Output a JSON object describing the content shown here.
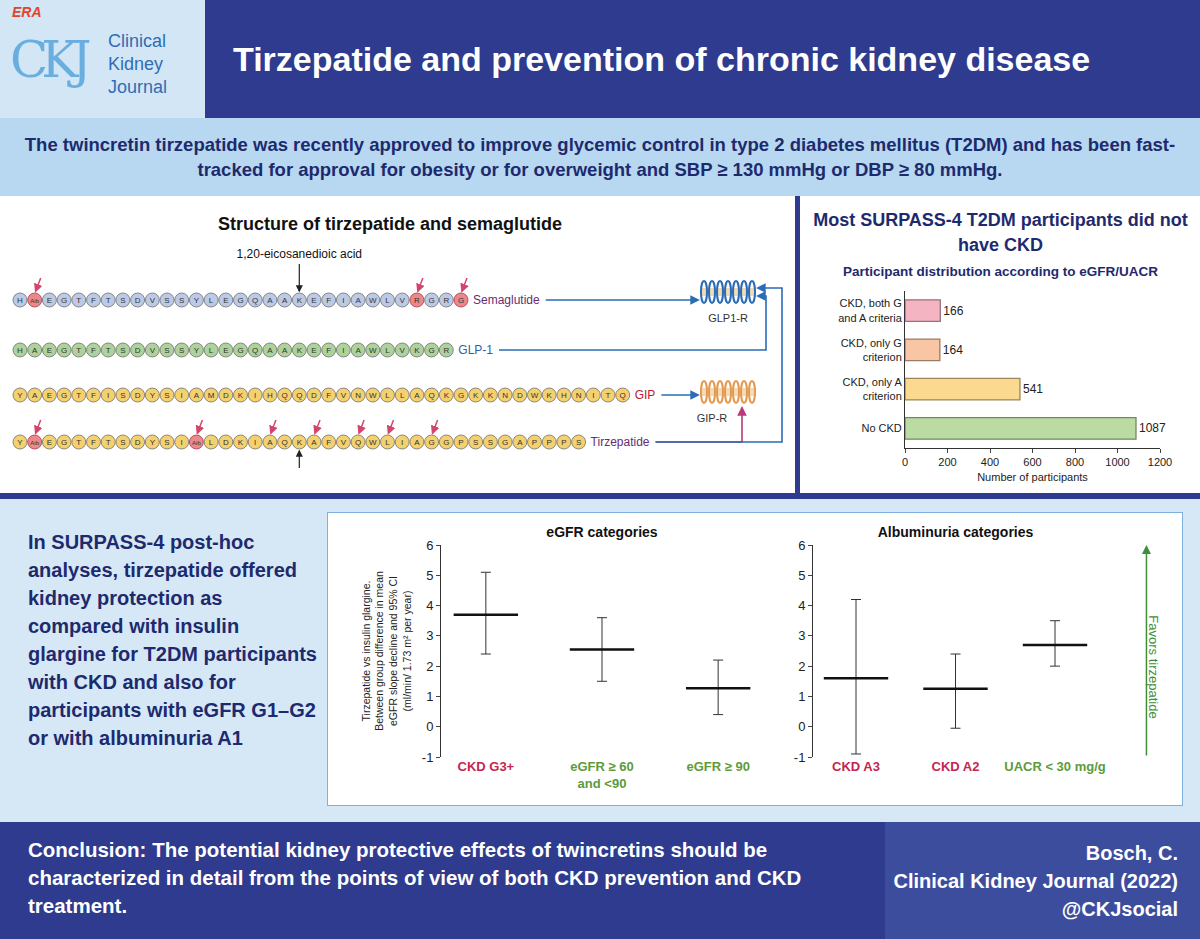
{
  "header": {
    "logo_badge": "ERA",
    "logo_mark": "CKJ",
    "journal": "Clinical Kidney Journal",
    "title": "Tirzepatide and prevention of chronic kidney disease"
  },
  "banner": "The twincretin tirzepatide was recently approved to improve glycemic control in type 2 diabetes mellitus (T2DM) and has been fast-tracked for approval for obesity or for overweight and SBP ≥ 130 mmHg or DBP ≥ 80 mmHg.",
  "structure": {
    "title": "Structure of tirzepatide and semaglutide",
    "side_chain_label": "1,20-eicosanedioic acid",
    "receptors": [
      "GLP1-R",
      "GIP-R"
    ],
    "peptides": [
      {
        "name": "Semaglutide",
        "color": "#bccae6",
        "residues": [
          "H",
          "Aib",
          "E",
          "G",
          "T",
          "F",
          "T",
          "S",
          "D",
          "V",
          "S",
          "S",
          "Y",
          "L",
          "E",
          "G",
          "Q",
          "A",
          "A",
          "K",
          "E",
          "F",
          "I",
          "A",
          "W",
          "L",
          "V",
          "R",
          "G",
          "R",
          "G"
        ],
        "marked": [
          1,
          27,
          30
        ],
        "arrows": [
          1,
          27,
          30
        ],
        "side_chain": 19,
        "receptors": [
          "GLP1-R"
        ]
      },
      {
        "name": "GLP-1",
        "color": "#add29a",
        "residues": [
          "H",
          "A",
          "E",
          "G",
          "T",
          "F",
          "T",
          "S",
          "D",
          "V",
          "S",
          "S",
          "Y",
          "L",
          "E",
          "G",
          "Q",
          "A",
          "A",
          "K",
          "E",
          "F",
          "I",
          "A",
          "W",
          "L",
          "V",
          "K",
          "G",
          "R"
        ],
        "marked": [],
        "arrows": [],
        "receptors": [
          "GLP1-R"
        ]
      },
      {
        "name": "GIP",
        "color": "#f4d06e",
        "residues": [
          "Y",
          "A",
          "E",
          "G",
          "T",
          "F",
          "I",
          "S",
          "D",
          "Y",
          "S",
          "I",
          "A",
          "M",
          "D",
          "K",
          "I",
          "H",
          "Q",
          "Q",
          "D",
          "F",
          "V",
          "N",
          "W",
          "L",
          "L",
          "A",
          "Q",
          "K",
          "G",
          "K",
          "K",
          "N",
          "D",
          "W",
          "K",
          "H",
          "N",
          "I",
          "T",
          "Q"
        ],
        "marked": [],
        "arrows": [],
        "receptors": [
          "GIP-R"
        ]
      },
      {
        "name": "Tirzepatide",
        "color": "#f4d06e",
        "residues": [
          "Y",
          "Aib",
          "E",
          "G",
          "T",
          "F",
          "T",
          "S",
          "D",
          "Y",
          "S",
          "I",
          "Aib",
          "L",
          "D",
          "K",
          "I",
          "A",
          "Q",
          "K",
          "A",
          "F",
          "V",
          "Q",
          "W",
          "L",
          "I",
          "A",
          "G",
          "G",
          "P",
          "S",
          "S",
          "G",
          "A",
          "P",
          "P",
          "P",
          "S"
        ],
        "marked": [
          1,
          12
        ],
        "arrows": [
          1,
          12,
          17,
          20,
          23,
          25,
          28
        ],
        "side_chain": 19,
        "receptors": [
          "GIP-R",
          "GLP1-R"
        ]
      }
    ]
  },
  "summary": "In SURPASS-4 post-hoc analyses, tirzepatide offered kidney protection as compared with insulin glargine for T2DM participants with CKD and also for participants with eGFR G1–G2 or with albuminuria A1",
  "conclusion": {
    "lead": "Conclusion:",
    "text": "The potential kidney protective effects of twincretins should be characterized in detail from the points of view of both CKD prevention and CKD treatment."
  },
  "citation": [
    "Bosch, C.",
    "Clinical Kidney Journal (2022)",
    "@CKJsocial"
  ],
  "chart_data": [
    {
      "type": "bar",
      "orientation": "horizontal",
      "title": "Most SURPASS-4 T2DM participants did not have CKD",
      "subtitle": "Participant distribution according to eGFR/UACR",
      "categories": [
        "CKD, both G and A criteria",
        "CKD, only G criterion",
        "CKD, only A criterion",
        "No CKD"
      ],
      "values": [
        166,
        164,
        541,
        1087
      ],
      "colors": [
        "#f5b4c1",
        "#f8c6a5",
        "#fbd98f",
        "#badca3"
      ],
      "xlabel": "Number of participants",
      "xlim": [
        0,
        1200
      ],
      "xticks": [
        0,
        200,
        400,
        600,
        800,
        1000,
        1200
      ],
      "data_labels": true,
      "grid": false
    },
    {
      "type": "scatter",
      "marker": "line",
      "title": "eGFR categories",
      "ylabel": "Tirzepatide vs insulin glargine. Between group difference in mean eGFR slope decline and 95% CI (ml/min/ 1.73 m² per year)",
      "categories": [
        "CKD G3+",
        "eGFR ≥ 60 and <90",
        "eGFR ≥ 90"
      ],
      "values": [
        3.7,
        2.55,
        1.27
      ],
      "ci_low": [
        2.4,
        1.5,
        0.4
      ],
      "ci_high": [
        5.1,
        3.6,
        2.2
      ],
      "colors": [
        "#c4264f",
        "#5d9b3b",
        "#5d9b3b"
      ],
      "ylim": [
        -1,
        6
      ],
      "yticks": [
        -1,
        0,
        1,
        2,
        3,
        4,
        5,
        6
      ],
      "grid": false
    },
    {
      "type": "scatter",
      "marker": "line",
      "title": "Albuminuria categories",
      "annotation": "Favors tirzepatide",
      "categories": [
        "CKD A3",
        "CKD A2",
        "UACR < 30 mg/g"
      ],
      "values": [
        1.6,
        1.25,
        2.7
      ],
      "ci_low": [
        -0.9,
        -0.05,
        2.0
      ],
      "ci_high": [
        4.2,
        2.4,
        3.5
      ],
      "colors": [
        "#c4264f",
        "#c4264f",
        "#5d9b3b"
      ],
      "ylim": [
        -1,
        6
      ],
      "yticks": [
        -1,
        0,
        1,
        2,
        3,
        4,
        5,
        6
      ],
      "grid": false
    }
  ]
}
